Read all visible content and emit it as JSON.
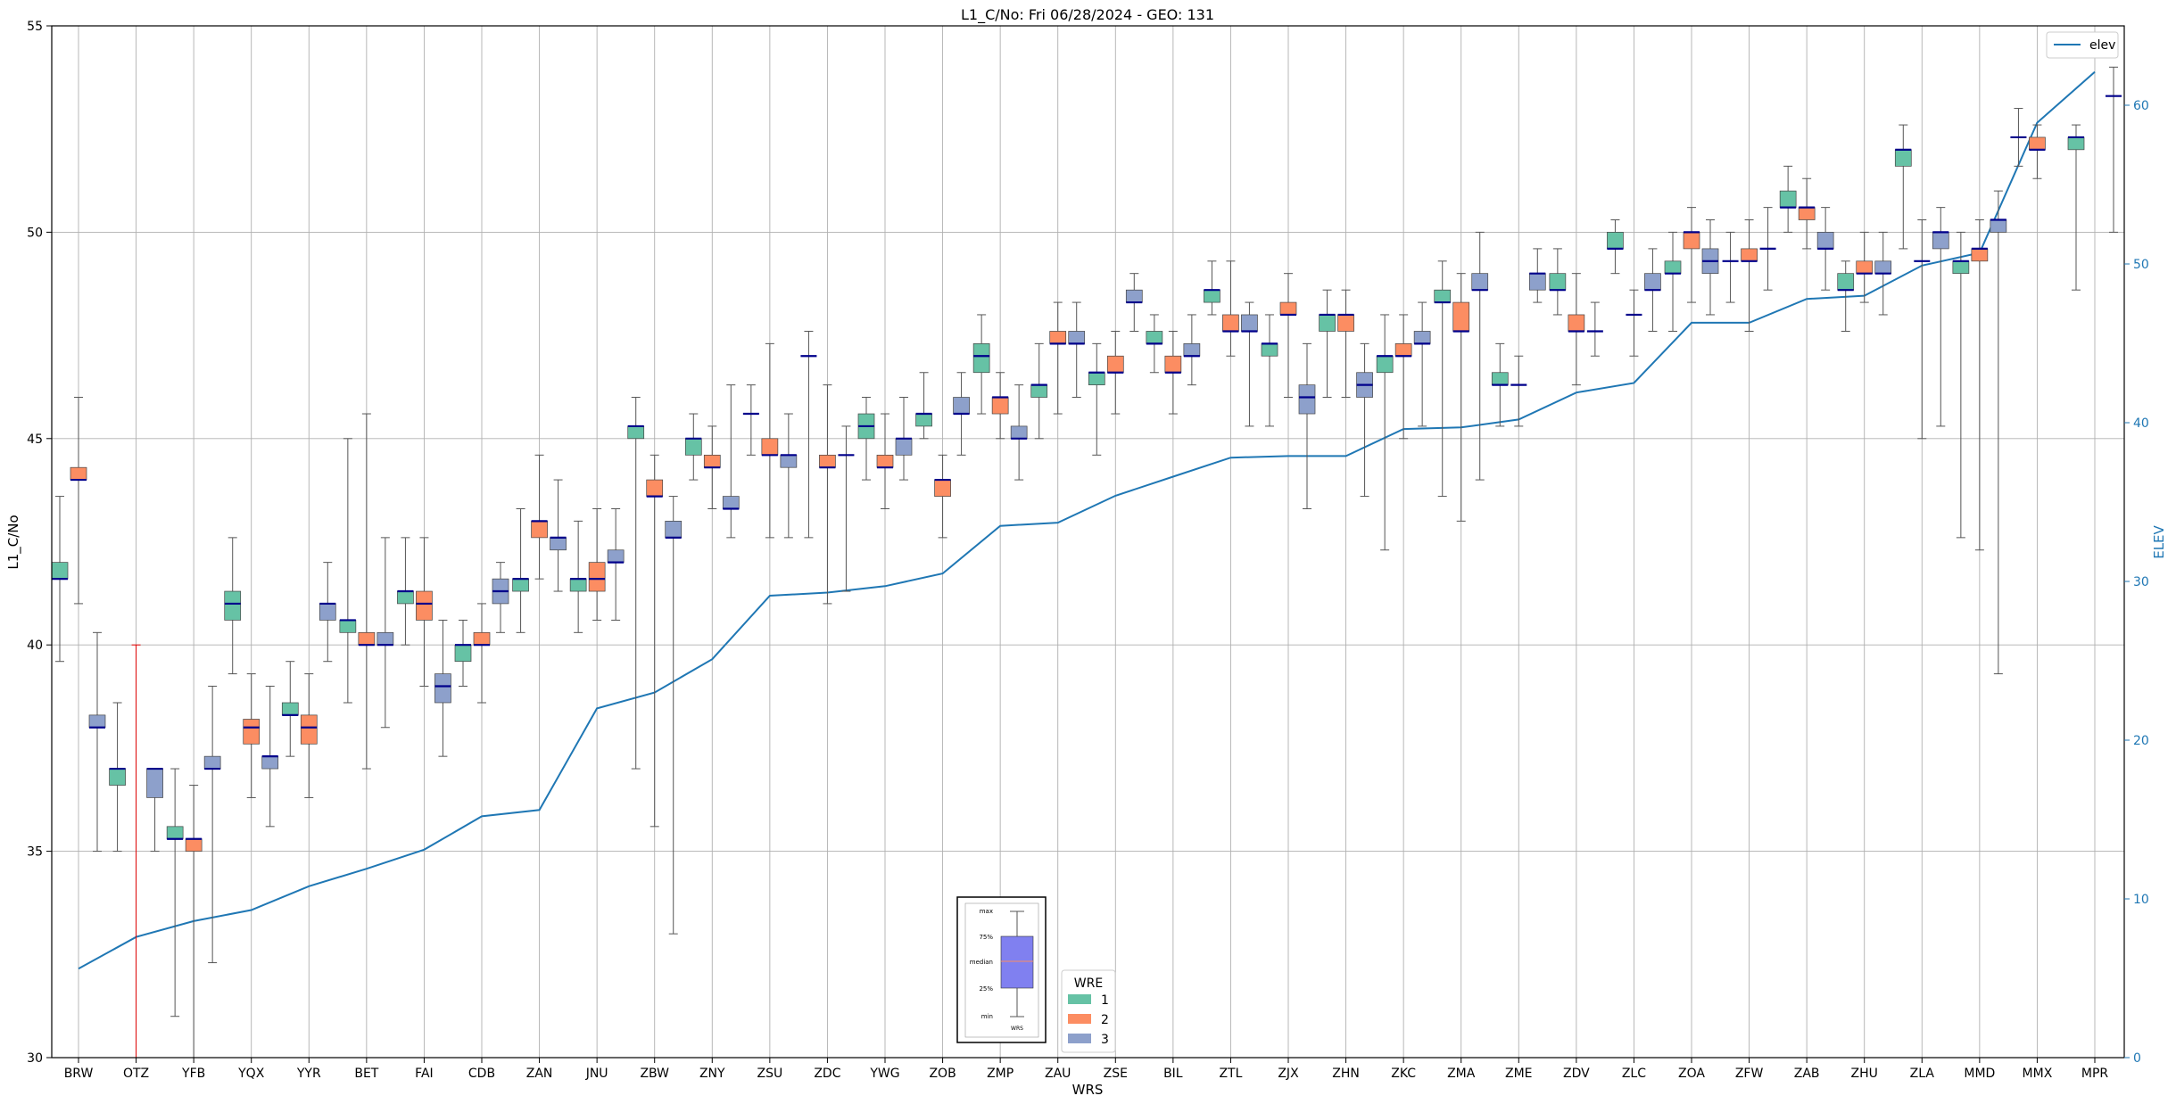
{
  "chart_data": {
    "type": "box",
    "title": "L1_C/No: Fri 06/28/2024 - GEO: 131",
    "xlabel": "WRS",
    "ylabel": "L1_C/No",
    "y2label": "ELEV",
    "ylim": [
      30,
      55
    ],
    "y2lim": [
      0,
      65
    ],
    "yticks": [
      30,
      35,
      40,
      45,
      50,
      55
    ],
    "y2ticks": [
      0,
      10,
      20,
      30,
      40,
      50,
      60
    ],
    "grid": true,
    "categories": [
      "BRW",
      "OTZ",
      "YFB",
      "YQX",
      "YYR",
      "BET",
      "FAI",
      "CDB",
      "ZAN",
      "JNU",
      "ZBW",
      "ZNY",
      "ZSU",
      "ZDC",
      "YWG",
      "ZOB",
      "ZMP",
      "ZAU",
      "ZSE",
      "BIL",
      "ZTL",
      "ZJX",
      "ZHN",
      "ZKC",
      "ZMA",
      "ZME",
      "ZDV",
      "ZLC",
      "ZOA",
      "ZFW",
      "ZAB",
      "ZHU",
      "ZLA",
      "MMD",
      "MMX",
      "MPR"
    ],
    "wre_colors": {
      "1": "#66c2a5",
      "2": "#fc8d62",
      "3": "#8da0cb"
    },
    "median_color": "#00008b",
    "line_color": "#1f77b4",
    "boxes": [
      {
        "site": "BRW",
        "wre": 1,
        "min": 39.6,
        "q1": 41.6,
        "median": 41.6,
        "q3": 42.0,
        "max": 43.6
      },
      {
        "site": "BRW",
        "wre": 2,
        "min": 41.0,
        "q1": 44.0,
        "median": 44.0,
        "q3": 44.3,
        "max": 46.0
      },
      {
        "site": "BRW",
        "wre": 3,
        "min": 35.0,
        "q1": 38.0,
        "median": 38.0,
        "q3": 38.3,
        "max": 40.3
      },
      {
        "site": "OTZ",
        "wre": 1,
        "min": 35.0,
        "q1": 36.6,
        "median": 37.0,
        "q3": 37.0,
        "max": 38.6
      },
      {
        "site": "OTZ",
        "wre": 2,
        "min": 30.0,
        "q1": 30.0,
        "median": 30.0,
        "q3": 30.0,
        "max": 40.0
      },
      {
        "site": "OTZ",
        "wre": 3,
        "min": 35.0,
        "q1": 36.3,
        "median": 37.0,
        "q3": 37.0,
        "max": 37.0
      },
      {
        "site": "YFB",
        "wre": 1,
        "min": 31.0,
        "q1": 35.3,
        "median": 35.3,
        "q3": 35.6,
        "max": 37.0
      },
      {
        "site": "YFB",
        "wre": 2,
        "min": 30.0,
        "q1": 35.0,
        "median": 35.3,
        "q3": 35.3,
        "max": 36.6
      },
      {
        "site": "YFB",
        "wre": 3,
        "min": 32.3,
        "q1": 37.0,
        "median": 37.0,
        "q3": 37.3,
        "max": 39.0
      },
      {
        "site": "YQX",
        "wre": 1,
        "min": 39.3,
        "q1": 40.6,
        "median": 41.0,
        "q3": 41.3,
        "max": 42.6
      },
      {
        "site": "YQX",
        "wre": 2,
        "min": 36.3,
        "q1": 37.6,
        "median": 38.0,
        "q3": 38.2,
        "max": 39.3
      },
      {
        "site": "YQX",
        "wre": 3,
        "min": 35.6,
        "q1": 37.0,
        "median": 37.3,
        "q3": 37.3,
        "max": 39.0
      },
      {
        "site": "YYR",
        "wre": 1,
        "min": 37.3,
        "q1": 38.3,
        "median": 38.3,
        "q3": 38.6,
        "max": 39.6
      },
      {
        "site": "YYR",
        "wre": 2,
        "min": 36.3,
        "q1": 37.6,
        "median": 38.0,
        "q3": 38.3,
        "max": 39.3
      },
      {
        "site": "YYR",
        "wre": 3,
        "min": 39.6,
        "q1": 40.6,
        "median": 41.0,
        "q3": 41.0,
        "max": 42.0
      },
      {
        "site": "BET",
        "wre": 1,
        "min": 38.6,
        "q1": 40.3,
        "median": 40.6,
        "q3": 40.6,
        "max": 45.0
      },
      {
        "site": "BET",
        "wre": 2,
        "min": 37.0,
        "q1": 40.0,
        "median": 40.0,
        "q3": 40.3,
        "max": 45.6
      },
      {
        "site": "BET",
        "wre": 3,
        "min": 38.0,
        "q1": 40.0,
        "median": 40.0,
        "q3": 40.3,
        "max": 42.6
      },
      {
        "site": "FAI",
        "wre": 1,
        "min": 40.0,
        "q1": 41.0,
        "median": 41.3,
        "q3": 41.3,
        "max": 42.6
      },
      {
        "site": "FAI",
        "wre": 2,
        "min": 39.0,
        "q1": 40.6,
        "median": 41.0,
        "q3": 41.3,
        "max": 42.6
      },
      {
        "site": "FAI",
        "wre": 3,
        "min": 37.3,
        "q1": 38.6,
        "median": 39.0,
        "q3": 39.3,
        "max": 40.6
      },
      {
        "site": "CDB",
        "wre": 1,
        "min": 39.0,
        "q1": 39.6,
        "median": 40.0,
        "q3": 40.0,
        "max": 40.6
      },
      {
        "site": "CDB",
        "wre": 2,
        "min": 38.6,
        "q1": 40.0,
        "median": 40.0,
        "q3": 40.3,
        "max": 41.0
      },
      {
        "site": "CDB",
        "wre": 3,
        "min": 40.3,
        "q1": 41.0,
        "median": 41.3,
        "q3": 41.6,
        "max": 42.0
      },
      {
        "site": "ZAN",
        "wre": 1,
        "min": 40.3,
        "q1": 41.3,
        "median": 41.6,
        "q3": 41.6,
        "max": 43.3
      },
      {
        "site": "ZAN",
        "wre": 2,
        "min": 41.6,
        "q1": 42.6,
        "median": 43.0,
        "q3": 43.0,
        "max": 44.6
      },
      {
        "site": "ZAN",
        "wre": 3,
        "min": 41.3,
        "q1": 42.3,
        "median": 42.6,
        "q3": 42.6,
        "max": 44.0
      },
      {
        "site": "JNU",
        "wre": 1,
        "min": 40.3,
        "q1": 41.3,
        "median": 41.6,
        "q3": 41.6,
        "max": 43.0
      },
      {
        "site": "JNU",
        "wre": 2,
        "min": 40.6,
        "q1": 41.3,
        "median": 41.6,
        "q3": 42.0,
        "max": 43.3
      },
      {
        "site": "JNU",
        "wre": 3,
        "min": 40.6,
        "q1": 42.0,
        "median": 42.0,
        "q3": 42.3,
        "max": 43.3
      },
      {
        "site": "ZBW",
        "wre": 1,
        "min": 37.0,
        "q1": 45.0,
        "median": 45.3,
        "q3": 45.3,
        "max": 46.0
      },
      {
        "site": "ZBW",
        "wre": 2,
        "min": 35.6,
        "q1": 43.6,
        "median": 43.6,
        "q3": 44.0,
        "max": 44.6
      },
      {
        "site": "ZBW",
        "wre": 3,
        "min": 33.0,
        "q1": 42.6,
        "median": 42.6,
        "q3": 43.0,
        "max": 43.6
      },
      {
        "site": "ZNY",
        "wre": 1,
        "min": 44.0,
        "q1": 44.6,
        "median": 45.0,
        "q3": 45.0,
        "max": 45.6
      },
      {
        "site": "ZNY",
        "wre": 2,
        "min": 43.3,
        "q1": 44.3,
        "median": 44.3,
        "q3": 44.6,
        "max": 45.3
      },
      {
        "site": "ZNY",
        "wre": 3,
        "min": 42.6,
        "q1": 43.3,
        "median": 43.3,
        "q3": 43.6,
        "max": 46.3
      },
      {
        "site": "ZSU",
        "wre": 1,
        "min": 44.6,
        "q1": 45.6,
        "median": 45.6,
        "q3": 45.6,
        "max": 46.3
      },
      {
        "site": "ZSU",
        "wre": 2,
        "min": 42.6,
        "q1": 44.6,
        "median": 44.6,
        "q3": 45.0,
        "max": 47.3
      },
      {
        "site": "ZSU",
        "wre": 3,
        "min": 42.6,
        "q1": 44.3,
        "median": 44.6,
        "q3": 44.6,
        "max": 45.6
      },
      {
        "site": "ZDC",
        "wre": 1,
        "min": 42.6,
        "q1": 47.0,
        "median": 47.0,
        "q3": 47.0,
        "max": 47.6
      },
      {
        "site": "ZDC",
        "wre": 2,
        "min": 41.0,
        "q1": 44.3,
        "median": 44.3,
        "q3": 44.6,
        "max": 46.3
      },
      {
        "site": "ZDC",
        "wre": 3,
        "min": 41.3,
        "q1": 44.6,
        "median": 44.6,
        "q3": 44.6,
        "max": 45.3
      },
      {
        "site": "YWG",
        "wre": 1,
        "min": 44.0,
        "q1": 45.0,
        "median": 45.3,
        "q3": 45.6,
        "max": 46.0
      },
      {
        "site": "YWG",
        "wre": 2,
        "min": 43.3,
        "q1": 44.3,
        "median": 44.3,
        "q3": 44.6,
        "max": 45.6
      },
      {
        "site": "YWG",
        "wre": 3,
        "min": 44.0,
        "q1": 44.6,
        "median": 45.0,
        "q3": 45.0,
        "max": 46.0
      },
      {
        "site": "ZOB",
        "wre": 1,
        "min": 45.0,
        "q1": 45.3,
        "median": 45.6,
        "q3": 45.6,
        "max": 46.6
      },
      {
        "site": "ZOB",
        "wre": 2,
        "min": 42.6,
        "q1": 43.6,
        "median": 44.0,
        "q3": 44.0,
        "max": 44.6
      },
      {
        "site": "ZOB",
        "wre": 3,
        "min": 44.6,
        "q1": 45.6,
        "median": 45.6,
        "q3": 46.0,
        "max": 46.6
      },
      {
        "site": "ZMP",
        "wre": 1,
        "min": 45.6,
        "q1": 46.6,
        "median": 47.0,
        "q3": 47.3,
        "max": 48.0
      },
      {
        "site": "ZMP",
        "wre": 2,
        "min": 45.0,
        "q1": 45.6,
        "median": 46.0,
        "q3": 46.0,
        "max": 46.6
      },
      {
        "site": "ZMP",
        "wre": 3,
        "min": 44.0,
        "q1": 45.0,
        "median": 45.0,
        "q3": 45.3,
        "max": 46.3
      },
      {
        "site": "ZAU",
        "wre": 1,
        "min": 45.0,
        "q1": 46.0,
        "median": 46.3,
        "q3": 46.3,
        "max": 47.3
      },
      {
        "site": "ZAU",
        "wre": 2,
        "min": 45.6,
        "q1": 47.3,
        "median": 47.3,
        "q3": 47.6,
        "max": 48.3
      },
      {
        "site": "ZAU",
        "wre": 3,
        "min": 46.0,
        "q1": 47.3,
        "median": 47.3,
        "q3": 47.6,
        "max": 48.3
      },
      {
        "site": "ZSE",
        "wre": 1,
        "min": 44.6,
        "q1": 46.3,
        "median": 46.6,
        "q3": 46.6,
        "max": 47.3
      },
      {
        "site": "ZSE",
        "wre": 2,
        "min": 45.6,
        "q1": 46.6,
        "median": 46.6,
        "q3": 47.0,
        "max": 47.6
      },
      {
        "site": "ZSE",
        "wre": 3,
        "min": 47.6,
        "q1": 48.3,
        "median": 48.3,
        "q3": 48.6,
        "max": 49.0
      },
      {
        "site": "BIL",
        "wre": 1,
        "min": 46.6,
        "q1": 47.3,
        "median": 47.3,
        "q3": 47.6,
        "max": 48.0
      },
      {
        "site": "BIL",
        "wre": 2,
        "min": 45.6,
        "q1": 46.6,
        "median": 46.6,
        "q3": 47.0,
        "max": 47.6
      },
      {
        "site": "BIL",
        "wre": 3,
        "min": 46.3,
        "q1": 47.0,
        "median": 47.0,
        "q3": 47.3,
        "max": 48.0
      },
      {
        "site": "ZTL",
        "wre": 1,
        "min": 48.0,
        "q1": 48.3,
        "median": 48.6,
        "q3": 48.6,
        "max": 49.3
      },
      {
        "site": "ZTL",
        "wre": 2,
        "min": 47.0,
        "q1": 47.6,
        "median": 47.6,
        "q3": 48.0,
        "max": 49.3
      },
      {
        "site": "ZTL",
        "wre": 3,
        "min": 45.3,
        "q1": 47.6,
        "median": 47.6,
        "q3": 48.0,
        "max": 48.3
      },
      {
        "site": "ZJX",
        "wre": 1,
        "min": 45.3,
        "q1": 47.0,
        "median": 47.3,
        "q3": 47.3,
        "max": 48.0
      },
      {
        "site": "ZJX",
        "wre": 2,
        "min": 46.0,
        "q1": 48.0,
        "median": 48.0,
        "q3": 48.3,
        "max": 49.0
      },
      {
        "site": "ZJX",
        "wre": 3,
        "min": 43.3,
        "q1": 45.6,
        "median": 46.0,
        "q3": 46.3,
        "max": 47.3
      },
      {
        "site": "ZHN",
        "wre": 1,
        "min": 46.0,
        "q1": 47.6,
        "median": 48.0,
        "q3": 48.0,
        "max": 48.6
      },
      {
        "site": "ZHN",
        "wre": 2,
        "min": 46.0,
        "q1": 47.6,
        "median": 48.0,
        "q3": 48.0,
        "max": 48.6
      },
      {
        "site": "ZHN",
        "wre": 3,
        "min": 43.6,
        "q1": 46.0,
        "median": 46.3,
        "q3": 46.6,
        "max": 47.3
      },
      {
        "site": "ZKC",
        "wre": 1,
        "min": 42.3,
        "q1": 46.6,
        "median": 47.0,
        "q3": 47.0,
        "max": 48.0
      },
      {
        "site": "ZKC",
        "wre": 2,
        "min": 45.0,
        "q1": 47.0,
        "median": 47.0,
        "q3": 47.3,
        "max": 48.0
      },
      {
        "site": "ZKC",
        "wre": 3,
        "min": 45.3,
        "q1": 47.3,
        "median": 47.3,
        "q3": 47.6,
        "max": 48.3
      },
      {
        "site": "ZMA",
        "wre": 1,
        "min": 43.6,
        "q1": 48.3,
        "median": 48.3,
        "q3": 48.6,
        "max": 49.3
      },
      {
        "site": "ZMA",
        "wre": 2,
        "min": 43.0,
        "q1": 47.6,
        "median": 47.6,
        "q3": 48.3,
        "max": 49.0
      },
      {
        "site": "ZMA",
        "wre": 3,
        "min": 44.0,
        "q1": 48.6,
        "median": 48.6,
        "q3": 49.0,
        "max": 50.0
      },
      {
        "site": "ZME",
        "wre": 1,
        "min": 45.3,
        "q1": 46.3,
        "median": 46.3,
        "q3": 46.6,
        "max": 47.3
      },
      {
        "site": "ZME",
        "wre": 2,
        "min": 45.3,
        "q1": 46.3,
        "median": 46.3,
        "q3": 46.3,
        "max": 47.0
      },
      {
        "site": "ZME",
        "wre": 3,
        "min": 48.3,
        "q1": 48.6,
        "median": 49.0,
        "q3": 49.0,
        "max": 49.6
      },
      {
        "site": "ZDV",
        "wre": 1,
        "min": 48.0,
        "q1": 48.6,
        "median": 48.6,
        "q3": 49.0,
        "max": 49.6
      },
      {
        "site": "ZDV",
        "wre": 2,
        "min": 46.3,
        "q1": 47.6,
        "median": 47.6,
        "q3": 48.0,
        "max": 49.0
      },
      {
        "site": "ZDV",
        "wre": 3,
        "min": 47.0,
        "q1": 47.6,
        "median": 47.6,
        "q3": 47.6,
        "max": 48.3
      },
      {
        "site": "ZLC",
        "wre": 1,
        "min": 49.0,
        "q1": 49.6,
        "median": 49.6,
        "q3": 50.0,
        "max": 50.3
      },
      {
        "site": "ZLC",
        "wre": 2,
        "min": 47.0,
        "q1": 48.0,
        "median": 48.0,
        "q3": 48.0,
        "max": 48.6
      },
      {
        "site": "ZLC",
        "wre": 3,
        "min": 47.6,
        "q1": 48.6,
        "median": 48.6,
        "q3": 49.0,
        "max": 49.6
      },
      {
        "site": "ZOA",
        "wre": 1,
        "min": 47.6,
        "q1": 49.0,
        "median": 49.0,
        "q3": 49.3,
        "max": 50.0
      },
      {
        "site": "ZOA",
        "wre": 2,
        "min": 48.3,
        "q1": 49.6,
        "median": 50.0,
        "q3": 50.0,
        "max": 50.6
      },
      {
        "site": "ZOA",
        "wre": 3,
        "min": 48.0,
        "q1": 49.0,
        "median": 49.3,
        "q3": 49.6,
        "max": 50.3
      },
      {
        "site": "ZFW",
        "wre": 1,
        "min": 48.3,
        "q1": 49.3,
        "median": 49.3,
        "q3": 49.3,
        "max": 50.0
      },
      {
        "site": "ZFW",
        "wre": 2,
        "min": 47.6,
        "q1": 49.3,
        "median": 49.3,
        "q3": 49.6,
        "max": 50.3
      },
      {
        "site": "ZFW",
        "wre": 3,
        "min": 48.6,
        "q1": 49.6,
        "median": 49.6,
        "q3": 49.6,
        "max": 50.6
      },
      {
        "site": "ZAB",
        "wre": 1,
        "min": 50.0,
        "q1": 50.6,
        "median": 50.6,
        "q3": 51.0,
        "max": 51.6
      },
      {
        "site": "ZAB",
        "wre": 2,
        "min": 49.6,
        "q1": 50.3,
        "median": 50.6,
        "q3": 50.6,
        "max": 51.3
      },
      {
        "site": "ZAB",
        "wre": 3,
        "min": 48.6,
        "q1": 49.6,
        "median": 49.6,
        "q3": 50.0,
        "max": 50.6
      },
      {
        "site": "ZHU",
        "wre": 1,
        "min": 47.6,
        "q1": 48.6,
        "median": 48.6,
        "q3": 49.0,
        "max": 49.3
      },
      {
        "site": "ZHU",
        "wre": 2,
        "min": 48.3,
        "q1": 49.0,
        "median": 49.0,
        "q3": 49.3,
        "max": 50.0
      },
      {
        "site": "ZHU",
        "wre": 3,
        "min": 48.0,
        "q1": 49.0,
        "median": 49.0,
        "q3": 49.3,
        "max": 50.0
      },
      {
        "site": "ZLA",
        "wre": 1,
        "min": 49.6,
        "q1": 51.6,
        "median": 52.0,
        "q3": 52.0,
        "max": 52.6
      },
      {
        "site": "ZLA",
        "wre": 2,
        "min": 45.0,
        "q1": 49.3,
        "median": 49.3,
        "q3": 49.3,
        "max": 50.3
      },
      {
        "site": "ZLA",
        "wre": 3,
        "min": 45.3,
        "q1": 49.6,
        "median": 50.0,
        "q3": 50.0,
        "max": 50.6
      },
      {
        "site": "MMD",
        "wre": 1,
        "min": 42.6,
        "q1": 49.0,
        "median": 49.3,
        "q3": 49.3,
        "max": 50.0
      },
      {
        "site": "MMD",
        "wre": 2,
        "min": 42.3,
        "q1": 49.3,
        "median": 49.6,
        "q3": 49.6,
        "max": 50.3
      },
      {
        "site": "MMD",
        "wre": 3,
        "min": 39.3,
        "q1": 50.0,
        "median": 50.3,
        "q3": 50.3,
        "max": 51.0
      },
      {
        "site": "MMX",
        "wre": 1,
        "min": 51.6,
        "q1": 52.3,
        "median": 52.3,
        "q3": 52.3,
        "max": 53.0
      },
      {
        "site": "MMX",
        "wre": 2,
        "min": 51.3,
        "q1": 52.0,
        "median": 52.0,
        "q3": 52.3,
        "max": 52.6
      },
      {
        "site": "MPR",
        "wre": 1,
        "min": 48.6,
        "q1": 52.0,
        "median": 52.3,
        "q3": 52.3,
        "max": 52.6
      },
      {
        "site": "MPR",
        "wre": 3,
        "min": 50.0,
        "q1": 53.3,
        "median": 53.3,
        "q3": 53.3,
        "max": 54.0
      }
    ],
    "elev": {
      "name": "elev",
      "values": [
        5.6,
        7.6,
        8.6,
        9.3,
        10.8,
        11.9,
        13.1,
        15.2,
        15.6,
        22.0,
        23.0,
        25.1,
        29.1,
        29.3,
        29.7,
        30.5,
        33.5,
        33.7,
        35.4,
        36.6,
        37.8,
        37.9,
        37.9,
        39.6,
        39.7,
        40.2,
        41.9,
        42.5,
        46.3,
        46.3,
        47.8,
        48.0,
        49.9,
        50.7,
        58.9,
        62.1
      ]
    },
    "legend_line": {
      "label": "elev",
      "placement": "top-right"
    },
    "legend_wre": {
      "title": "WRE",
      "labels": [
        "1",
        "2",
        "3"
      ],
      "placement": "bottom-center"
    },
    "inset_key": {
      "labels": [
        "max",
        "75%",
        "median",
        "25%",
        "min"
      ],
      "xlabel": "WRS",
      "box_color": "#8080f0",
      "median_color": "#fc8d62"
    }
  }
}
